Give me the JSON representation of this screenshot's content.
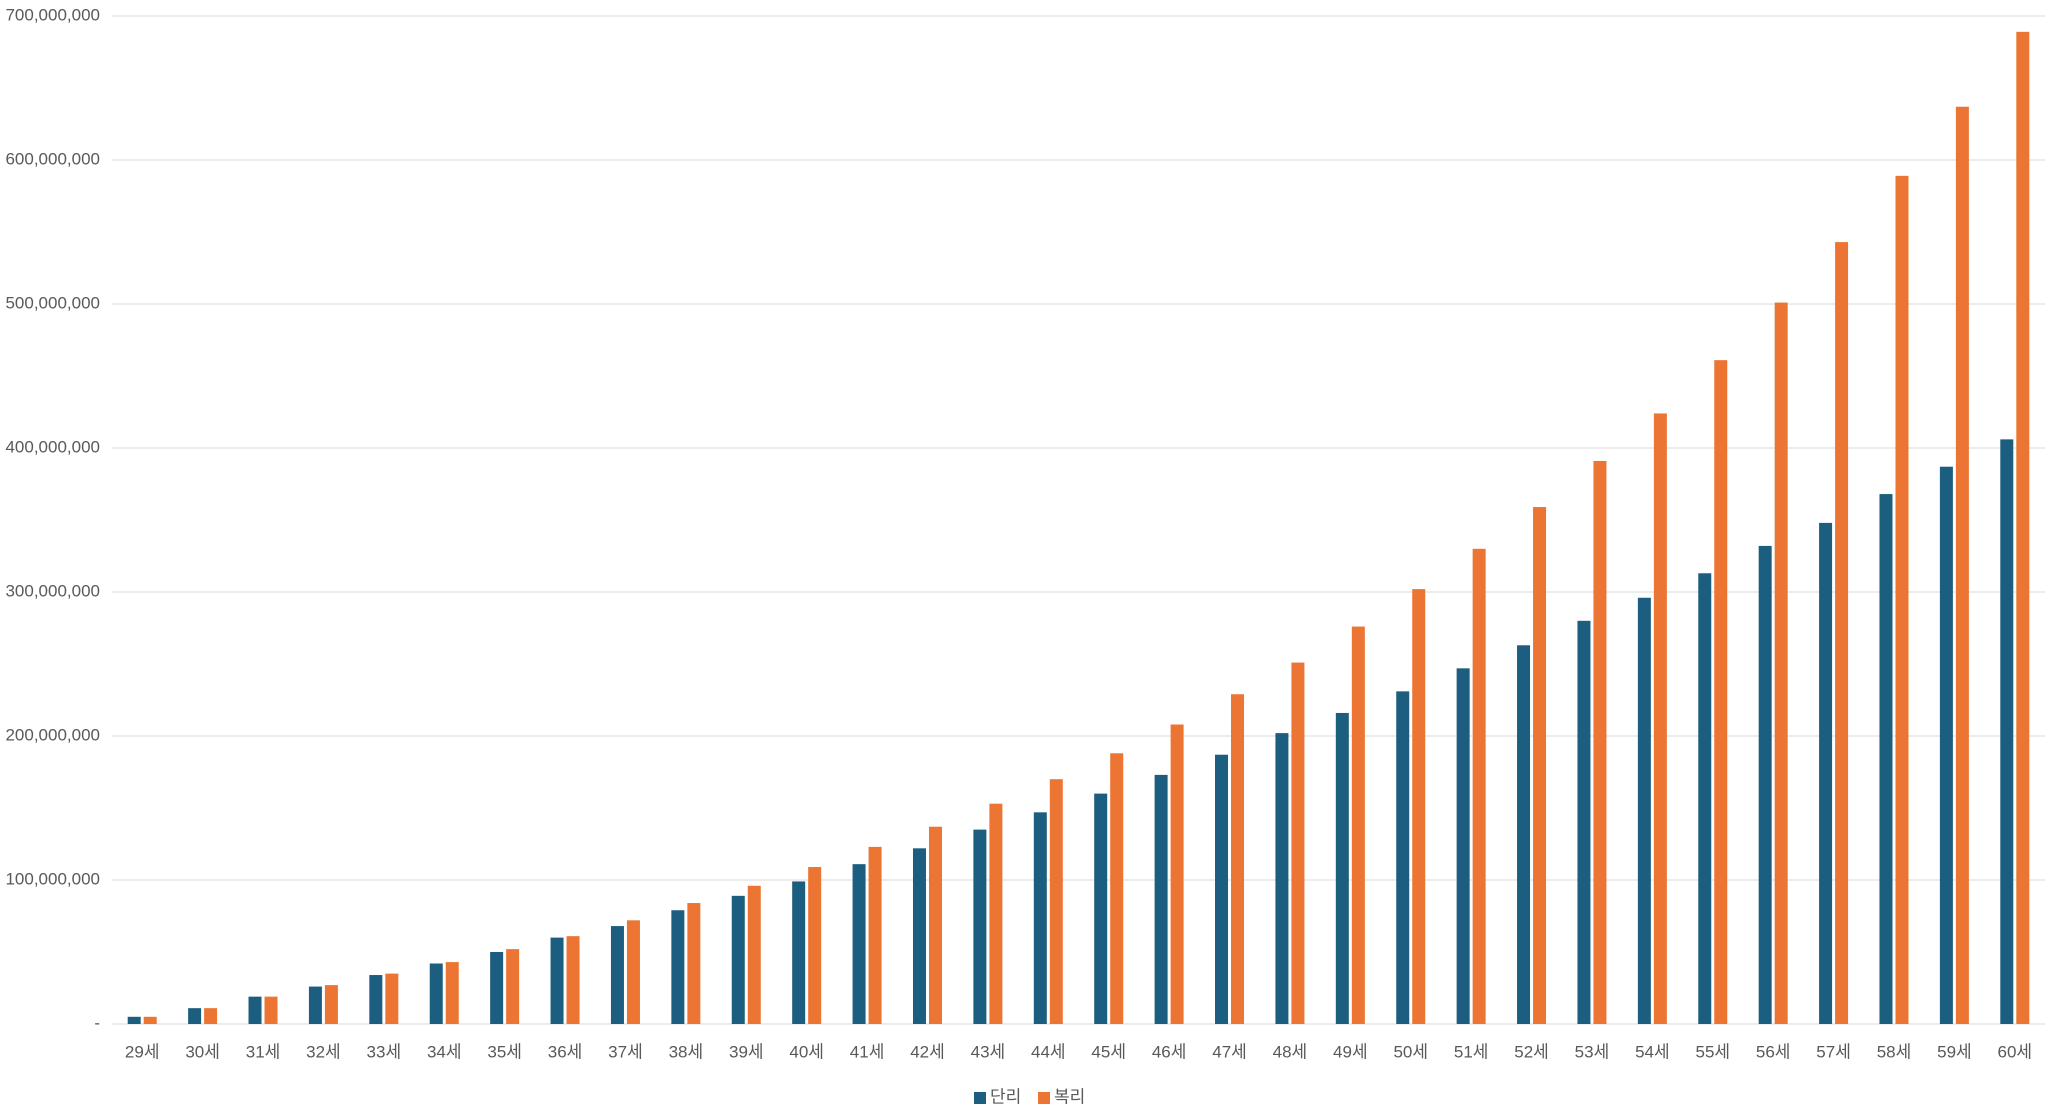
{
  "chart_data": {
    "type": "bar",
    "categories": [
      "29세",
      "30세",
      "31세",
      "32세",
      "33세",
      "34세",
      "35세",
      "36세",
      "37세",
      "38세",
      "39세",
      "40세",
      "41세",
      "42세",
      "43세",
      "44세",
      "45세",
      "46세",
      "47세",
      "48세",
      "49세",
      "50세",
      "51세",
      "52세",
      "53세",
      "54세",
      "55세",
      "56세",
      "57세",
      "58세",
      "59세",
      "60세"
    ],
    "series": [
      {
        "name": "단리",
        "color": "#1b5e7f",
        "values": [
          5000000,
          11000000,
          19000000,
          26000000,
          34000000,
          42000000,
          50000000,
          60000000,
          68000000,
          79000000,
          89000000,
          99000000,
          111000000,
          122000000,
          135000000,
          147000000,
          160000000,
          173000000,
          187000000,
          202000000,
          216000000,
          231000000,
          247000000,
          263000000,
          280000000,
          296000000,
          313000000,
          332000000,
          348000000,
          368000000,
          387000000,
          406000000
        ]
      },
      {
        "name": "복리",
        "color": "#ec7533",
        "values": [
          5000000,
          11000000,
          19000000,
          27000000,
          35000000,
          43000000,
          52000000,
          61000000,
          72000000,
          84000000,
          96000000,
          109000000,
          123000000,
          137000000,
          153000000,
          170000000,
          188000000,
          208000000,
          229000000,
          251000000,
          276000000,
          302000000,
          330000000,
          359000000,
          391000000,
          424000000,
          461000000,
          501000000,
          543000000,
          589000000,
          637000000,
          689000000
        ]
      }
    ],
    "ylim": [
      0,
      700000000
    ],
    "yticks": [
      {
        "value": 0,
        "label": "-"
      },
      {
        "value": 100000000,
        "label": "100,000,000"
      },
      {
        "value": 200000000,
        "label": "200,000,000"
      },
      {
        "value": 300000000,
        "label": "300,000,000"
      },
      {
        "value": 400000000,
        "label": "400,000,000"
      },
      {
        "value": 500000000,
        "label": "500,000,000"
      },
      {
        "value": 600000000,
        "label": "600,000,000"
      },
      {
        "value": 700000000,
        "label": "700,000,000"
      }
    ],
    "grid": true,
    "legend": "bottom"
  }
}
